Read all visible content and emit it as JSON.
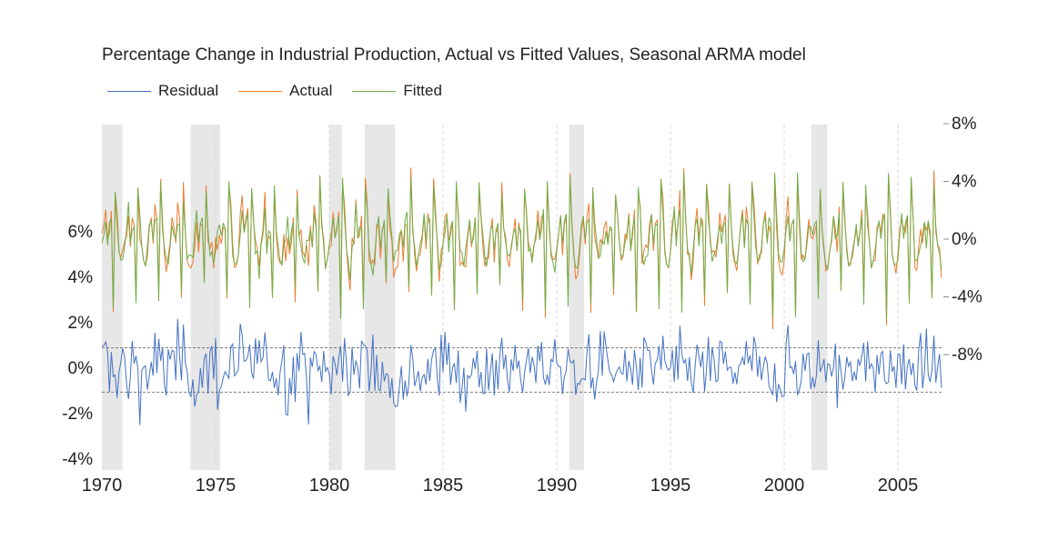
{
  "chart_data": {
    "type": "line",
    "title": "Percentage Change in Industrial Production, Actual vs Fitted Values, Seasonal ARMA model",
    "x_range": [
      1970,
      2007
    ],
    "x_ticks": [
      "1970",
      "1975",
      "1980",
      "1985",
      "1990",
      "1995",
      "2000",
      "2005"
    ],
    "left_axis": {
      "range": [
        -4,
        10
      ],
      "tick_labels": [
        "-4%",
        "-2%",
        "0%",
        "2%",
        "4%",
        "6%"
      ],
      "tick_values": [
        -4,
        -2,
        0,
        2,
        4,
        6
      ]
    },
    "right_axis": {
      "range": [
        -12,
        8
      ],
      "tick_labels": [
        "-8%",
        "-4%",
        "0%",
        "4%",
        "8%"
      ],
      "tick_values": [
        -8,
        -4,
        0,
        4,
        8
      ]
    },
    "residual_bands": [
      0.9,
      -1.05
    ],
    "recessions": [
      [
        1970.0,
        1970.9
      ],
      [
        1973.9,
        1975.2
      ],
      [
        1980.0,
        1980.55
      ],
      [
        1981.55,
        1982.9
      ],
      [
        1990.55,
        1991.2
      ],
      [
        2001.2,
        2001.9
      ]
    ],
    "series": [
      {
        "name": "Residual",
        "axis": "left",
        "color": "#4472c4",
        "freq": "monthly",
        "start": 1970,
        "end": 2006.95,
        "amplitude_note": "approx -3.7% to 2.9%"
      },
      {
        "name": "Actual",
        "axis": "right",
        "color": "#ed7d31",
        "freq": "monthly",
        "start": 1970,
        "end": 2006.95,
        "amplitude_note": "approx -6.5% to 5.5%"
      },
      {
        "name": "Fitted",
        "axis": "right",
        "color": "#70ad47",
        "freq": "monthly",
        "start": 1970,
        "end": 2006.95,
        "amplitude_note": "approx -5.8% to 4.5%"
      }
    ],
    "grid": {
      "vertical_dashed": true,
      "horizontal": false
    },
    "legend_position": "top-left"
  }
}
